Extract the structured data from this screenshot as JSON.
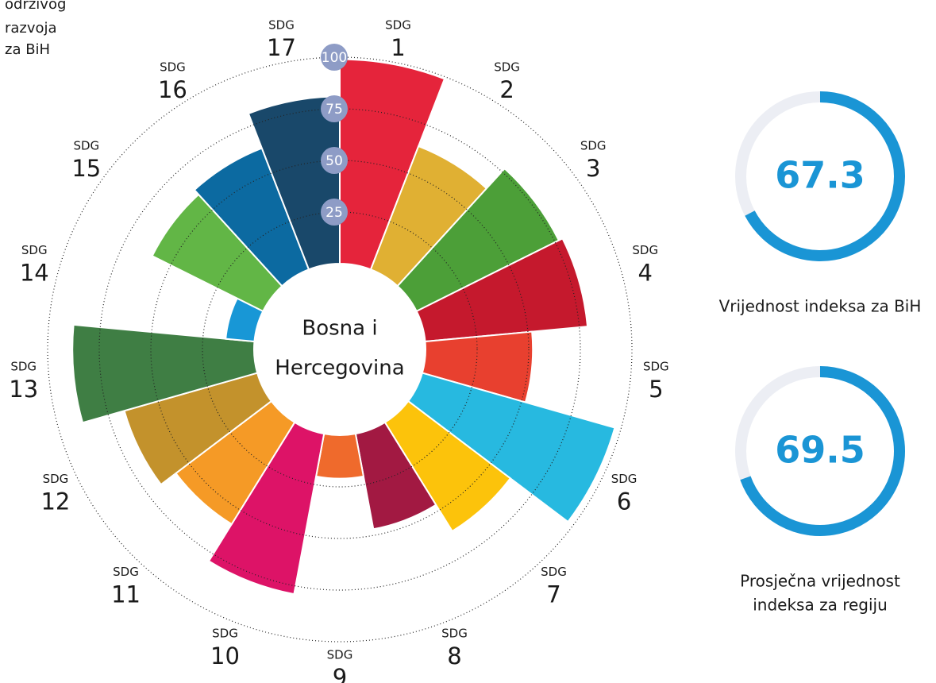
{
  "header_lines": [
    "održivog",
    "razvoja",
    "za BiH"
  ],
  "chart_data": [
    {
      "type": "polar_bar",
      "category_label": "SDG",
      "categories": [
        "1",
        "2",
        "3",
        "4",
        "5",
        "6",
        "7",
        "8",
        "9",
        "10",
        "11",
        "12",
        "13",
        "14",
        "15",
        "16",
        "17"
      ],
      "values": [
        99,
        64,
        77,
        79,
        52,
        97,
        62,
        47,
        21,
        79,
        58,
        67,
        88,
        14,
        60,
        63,
        81
      ],
      "colors": [
        "#e5243b",
        "#e0b033",
        "#4c9f38",
        "#c5192d",
        "#e8402f",
        "#27b9e0",
        "#fcc30b",
        "#a21942",
        "#ef6a2c",
        "#dd1367",
        "#f59a26",
        "#c3922c",
        "#3f7e44",
        "#1897d6",
        "#62b646",
        "#0c6aa1",
        "#19486a"
      ],
      "rlim": [
        0,
        100
      ],
      "rticks": [
        25,
        50,
        75,
        100
      ],
      "center_label": [
        "Bosna i",
        "Hercegovina"
      ]
    },
    {
      "type": "gauge",
      "value": 67.3,
      "lim": [
        0,
        100
      ],
      "color": "#1a95d5",
      "label": [
        "Vrijednost indeksa za BiH"
      ]
    },
    {
      "type": "gauge",
      "value": 69.5,
      "lim": [
        0,
        100
      ],
      "color": "#1a95d5",
      "label": [
        "Prosječna vrijednost",
        "indeksa za regiju"
      ]
    }
  ]
}
